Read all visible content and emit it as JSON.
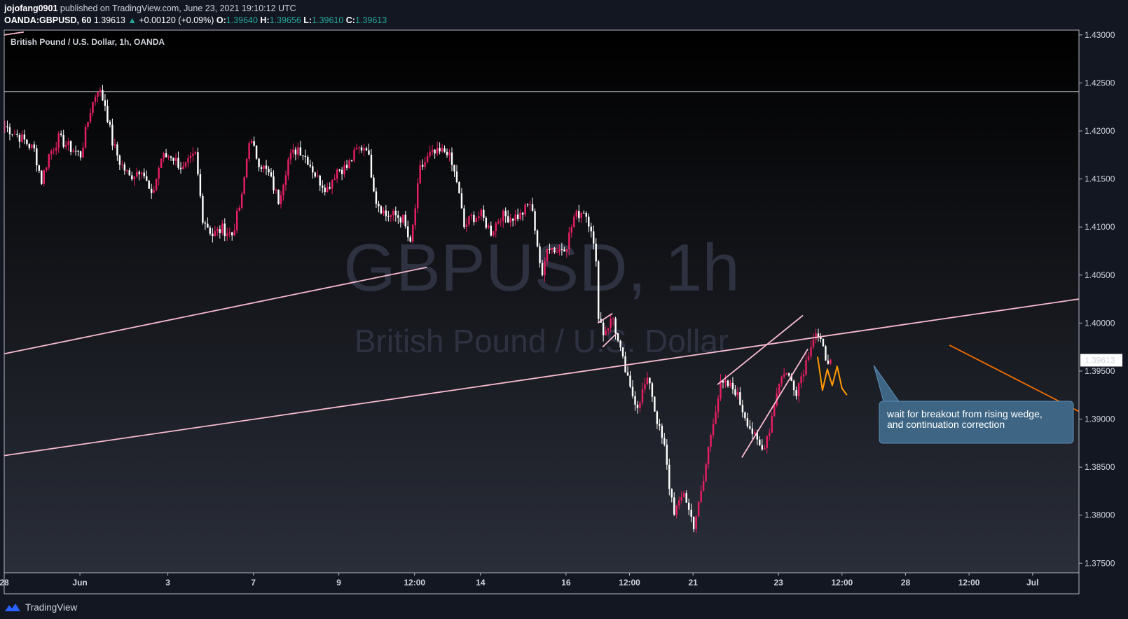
{
  "header": {
    "author": "jojofang0901",
    "published": "published on TradingView.com, June 23, 2021 19:10:12 UTC"
  },
  "ohlc": {
    "symbol": "OANDA:GBPUSD, 60",
    "last": "1.39613",
    "arrow": "▲",
    "change": "+0.00120 (+0.09%)",
    "o_label": "O:",
    "o": "1.39640",
    "h_label": "H:",
    "h": "1.39656",
    "l_label": "L:",
    "l": "1.39610",
    "c_label": "C:",
    "c": "1.39613"
  },
  "chart_data": {
    "type": "candlestick",
    "legend_title": "British Pound / U.S. Dollar, 1h, OANDA",
    "watermark_title": "GBPUSD, 1h",
    "watermark_subtitle": "British Pound / U.S. Dollar",
    "y_ticks": [
      "1.43000",
      "1.42500",
      "1.42000",
      "1.41500",
      "1.41000",
      "1.40500",
      "1.40000",
      "1.39500",
      "1.39000",
      "1.38500",
      "1.38000",
      "1.37500"
    ],
    "y_tick_values": [
      1.43,
      1.425,
      1.42,
      1.415,
      1.41,
      1.405,
      1.4,
      1.395,
      1.39,
      1.385,
      1.38,
      1.375
    ],
    "ylim": [
      1.374,
      1.4305
    ],
    "x_ticks": [
      "28",
      "Jun",
      "3",
      "7",
      "9",
      "12:00",
      "14",
      "16",
      "12:00",
      "21",
      "23",
      "12:00",
      "28",
      "12:00",
      "Jul"
    ],
    "x_tick_index": [
      0,
      31,
      67,
      102,
      137,
      168,
      195,
      230,
      256,
      282,
      317,
      343,
      369,
      395,
      421
    ],
    "x_bar_count": 440,
    "last_price": 1.39613,
    "last_price_label": "1.39613",
    "horizontal_level": 1.4241,
    "price_path": [
      [
        0,
        1.4205
      ],
      [
        8,
        1.419
      ],
      [
        12,
        1.418
      ],
      [
        15,
        1.4148
      ],
      [
        18,
        1.4175
      ],
      [
        22,
        1.4192
      ],
      [
        27,
        1.4182
      ],
      [
        31,
        1.4175
      ],
      [
        35,
        1.4222
      ],
      [
        38,
        1.4245
      ],
      [
        41,
        1.4228
      ],
      [
        44,
        1.4188
      ],
      [
        47,
        1.4168
      ],
      [
        51,
        1.4152
      ],
      [
        56,
        1.4162
      ],
      [
        60,
        1.413
      ],
      [
        64,
        1.4172
      ],
      [
        68,
        1.4175
      ],
      [
        73,
        1.416
      ],
      [
        78,
        1.4175
      ],
      [
        81,
        1.411
      ],
      [
        85,
        1.4092
      ],
      [
        89,
        1.4098
      ],
      [
        93,
        1.4092
      ],
      [
        97,
        1.413
      ],
      [
        100,
        1.4192
      ],
      [
        104,
        1.4168
      ],
      [
        108,
        1.4155
      ],
      [
        112,
        1.4128
      ],
      [
        116,
        1.417
      ],
      [
        120,
        1.4183
      ],
      [
        124,
        1.417
      ],
      [
        128,
        1.415
      ],
      [
        132,
        1.414
      ],
      [
        136,
        1.416
      ],
      [
        140,
        1.4162
      ],
      [
        144,
        1.418
      ],
      [
        148,
        1.4185
      ],
      [
        152,
        1.4128
      ],
      [
        156,
        1.4112
      ],
      [
        160,
        1.4112
      ],
      [
        163,
        1.4108
      ],
      [
        166,
        1.408
      ],
      [
        170,
        1.416
      ],
      [
        174,
        1.4175
      ],
      [
        178,
        1.4177
      ],
      [
        181,
        1.418
      ],
      [
        185,
        1.4148
      ],
      [
        188,
        1.41
      ],
      [
        191,
        1.411
      ],
      [
        195,
        1.4112
      ],
      [
        199,
        1.4095
      ],
      [
        203,
        1.4112
      ],
      [
        207,
        1.411
      ],
      [
        211,
        1.4112
      ],
      [
        215,
        1.4125
      ],
      [
        217,
        1.41
      ],
      [
        220,
        1.4045
      ],
      [
        222,
        1.4082
      ],
      [
        226,
        1.4075
      ],
      [
        230,
        1.4082
      ],
      [
        233,
        1.411
      ],
      [
        237,
        1.4118
      ],
      [
        240,
        1.41
      ],
      [
        242,
        1.406
      ],
      [
        243,
        1.401
      ],
      [
        245,
        1.399
      ],
      [
        247,
        1.3998
      ],
      [
        249,
        1.4005
      ],
      [
        251,
        1.398
      ],
      [
        253,
        1.396
      ],
      [
        256,
        1.393
      ],
      [
        259,
        1.3915
      ],
      [
        262,
        1.3935
      ],
      [
        264,
        1.394
      ],
      [
        266,
        1.391
      ],
      [
        268,
        1.3888
      ],
      [
        270,
        1.387
      ],
      [
        272,
        1.383
      ],
      [
        274,
        1.3805
      ],
      [
        276,
        1.381
      ],
      [
        278,
        1.3825
      ],
      [
        280,
        1.3805
      ],
      [
        282,
        1.379
      ],
      [
        284,
        1.381
      ],
      [
        286,
        1.3835
      ],
      [
        288,
        1.387
      ],
      [
        290,
        1.39
      ],
      [
        293,
        1.3935
      ],
      [
        296,
        1.3935
      ],
      [
        299,
        1.393
      ],
      [
        302,
        1.391
      ],
      [
        305,
        1.3892
      ],
      [
        308,
        1.3875
      ],
      [
        310,
        1.3868
      ],
      [
        313,
        1.389
      ],
      [
        316,
        1.393
      ],
      [
        319,
        1.395
      ],
      [
        322,
        1.394
      ],
      [
        324,
        1.393
      ],
      [
        326,
        1.3945
      ],
      [
        328,
        1.396
      ],
      [
        330,
        1.398
      ],
      [
        332,
        1.399
      ],
      [
        334,
        1.3978
      ],
      [
        336,
        1.3965
      ],
      [
        338,
        1.3962
      ]
    ],
    "lines": [
      {
        "name": "lower-channel-line",
        "color": "#f8bbd0",
        "points": [
          [
            0,
            1.3862
          ],
          [
            440,
            1.4025
          ]
        ]
      },
      {
        "name": "upper-channel-line",
        "color": "#f8bbd0",
        "points": [
          [
            0,
            1.3968
          ],
          [
            173,
            1.4058
          ]
        ]
      },
      {
        "name": "wedge-upper-line",
        "color": "#f8bbd0",
        "points": [
          [
            292,
            1.3936
          ],
          [
            327,
            1.4008
          ]
        ]
      },
      {
        "name": "wedge-lower-line",
        "color": "#f8bbd0",
        "points": [
          [
            302,
            1.386
          ],
          [
            329,
            1.3973
          ]
        ]
      },
      {
        "name": "flag-top-line",
        "color": "#f8bbd0",
        "points": [
          [
            243,
            1.4
          ],
          [
            249,
            1.401
          ]
        ]
      },
      {
        "name": "flag-bottom-line",
        "color": "#f8bbd0",
        "points": [
          [
            245,
            1.3975
          ],
          [
            251,
            1.399
          ]
        ]
      },
      {
        "name": "projection-line",
        "color": "#ef6c00",
        "points": [
          [
            387,
            1.3977
          ],
          [
            440,
            1.3908
          ]
        ]
      },
      {
        "name": "corner-line",
        "color": "#f8bbd0",
        "points": [
          [
            0,
            1.43
          ],
          [
            8,
            1.4303
          ]
        ]
      }
    ],
    "squiggle": {
      "color": "#ff9800",
      "points": [
        [
          333,
          1.3965
        ],
        [
          335,
          1.393
        ],
        [
          337,
          1.3952
        ],
        [
          339,
          1.3935
        ],
        [
          341,
          1.3955
        ],
        [
          343,
          1.3932
        ],
        [
          345,
          1.3925
        ]
      ]
    },
    "annotation": {
      "text_line1": "wait for breakout from rising wedge,",
      "text_line2": "and continuation correction",
      "pointer_from": [
        356,
        1.3956
      ],
      "box_color": "#3e6684",
      "border_color": "#5b8bb3"
    }
  },
  "footer": {
    "brand": "TradingView",
    "logo_icon": "tradingview-logo-icon"
  },
  "colors": {
    "up_candle": "#e91e63",
    "down_candle": "#ffffff",
    "background_top": "#000000",
    "background_bottom": "#2a2e39",
    "grid_border": "#b2b5be",
    "price_label_bg": "#ffffff"
  }
}
